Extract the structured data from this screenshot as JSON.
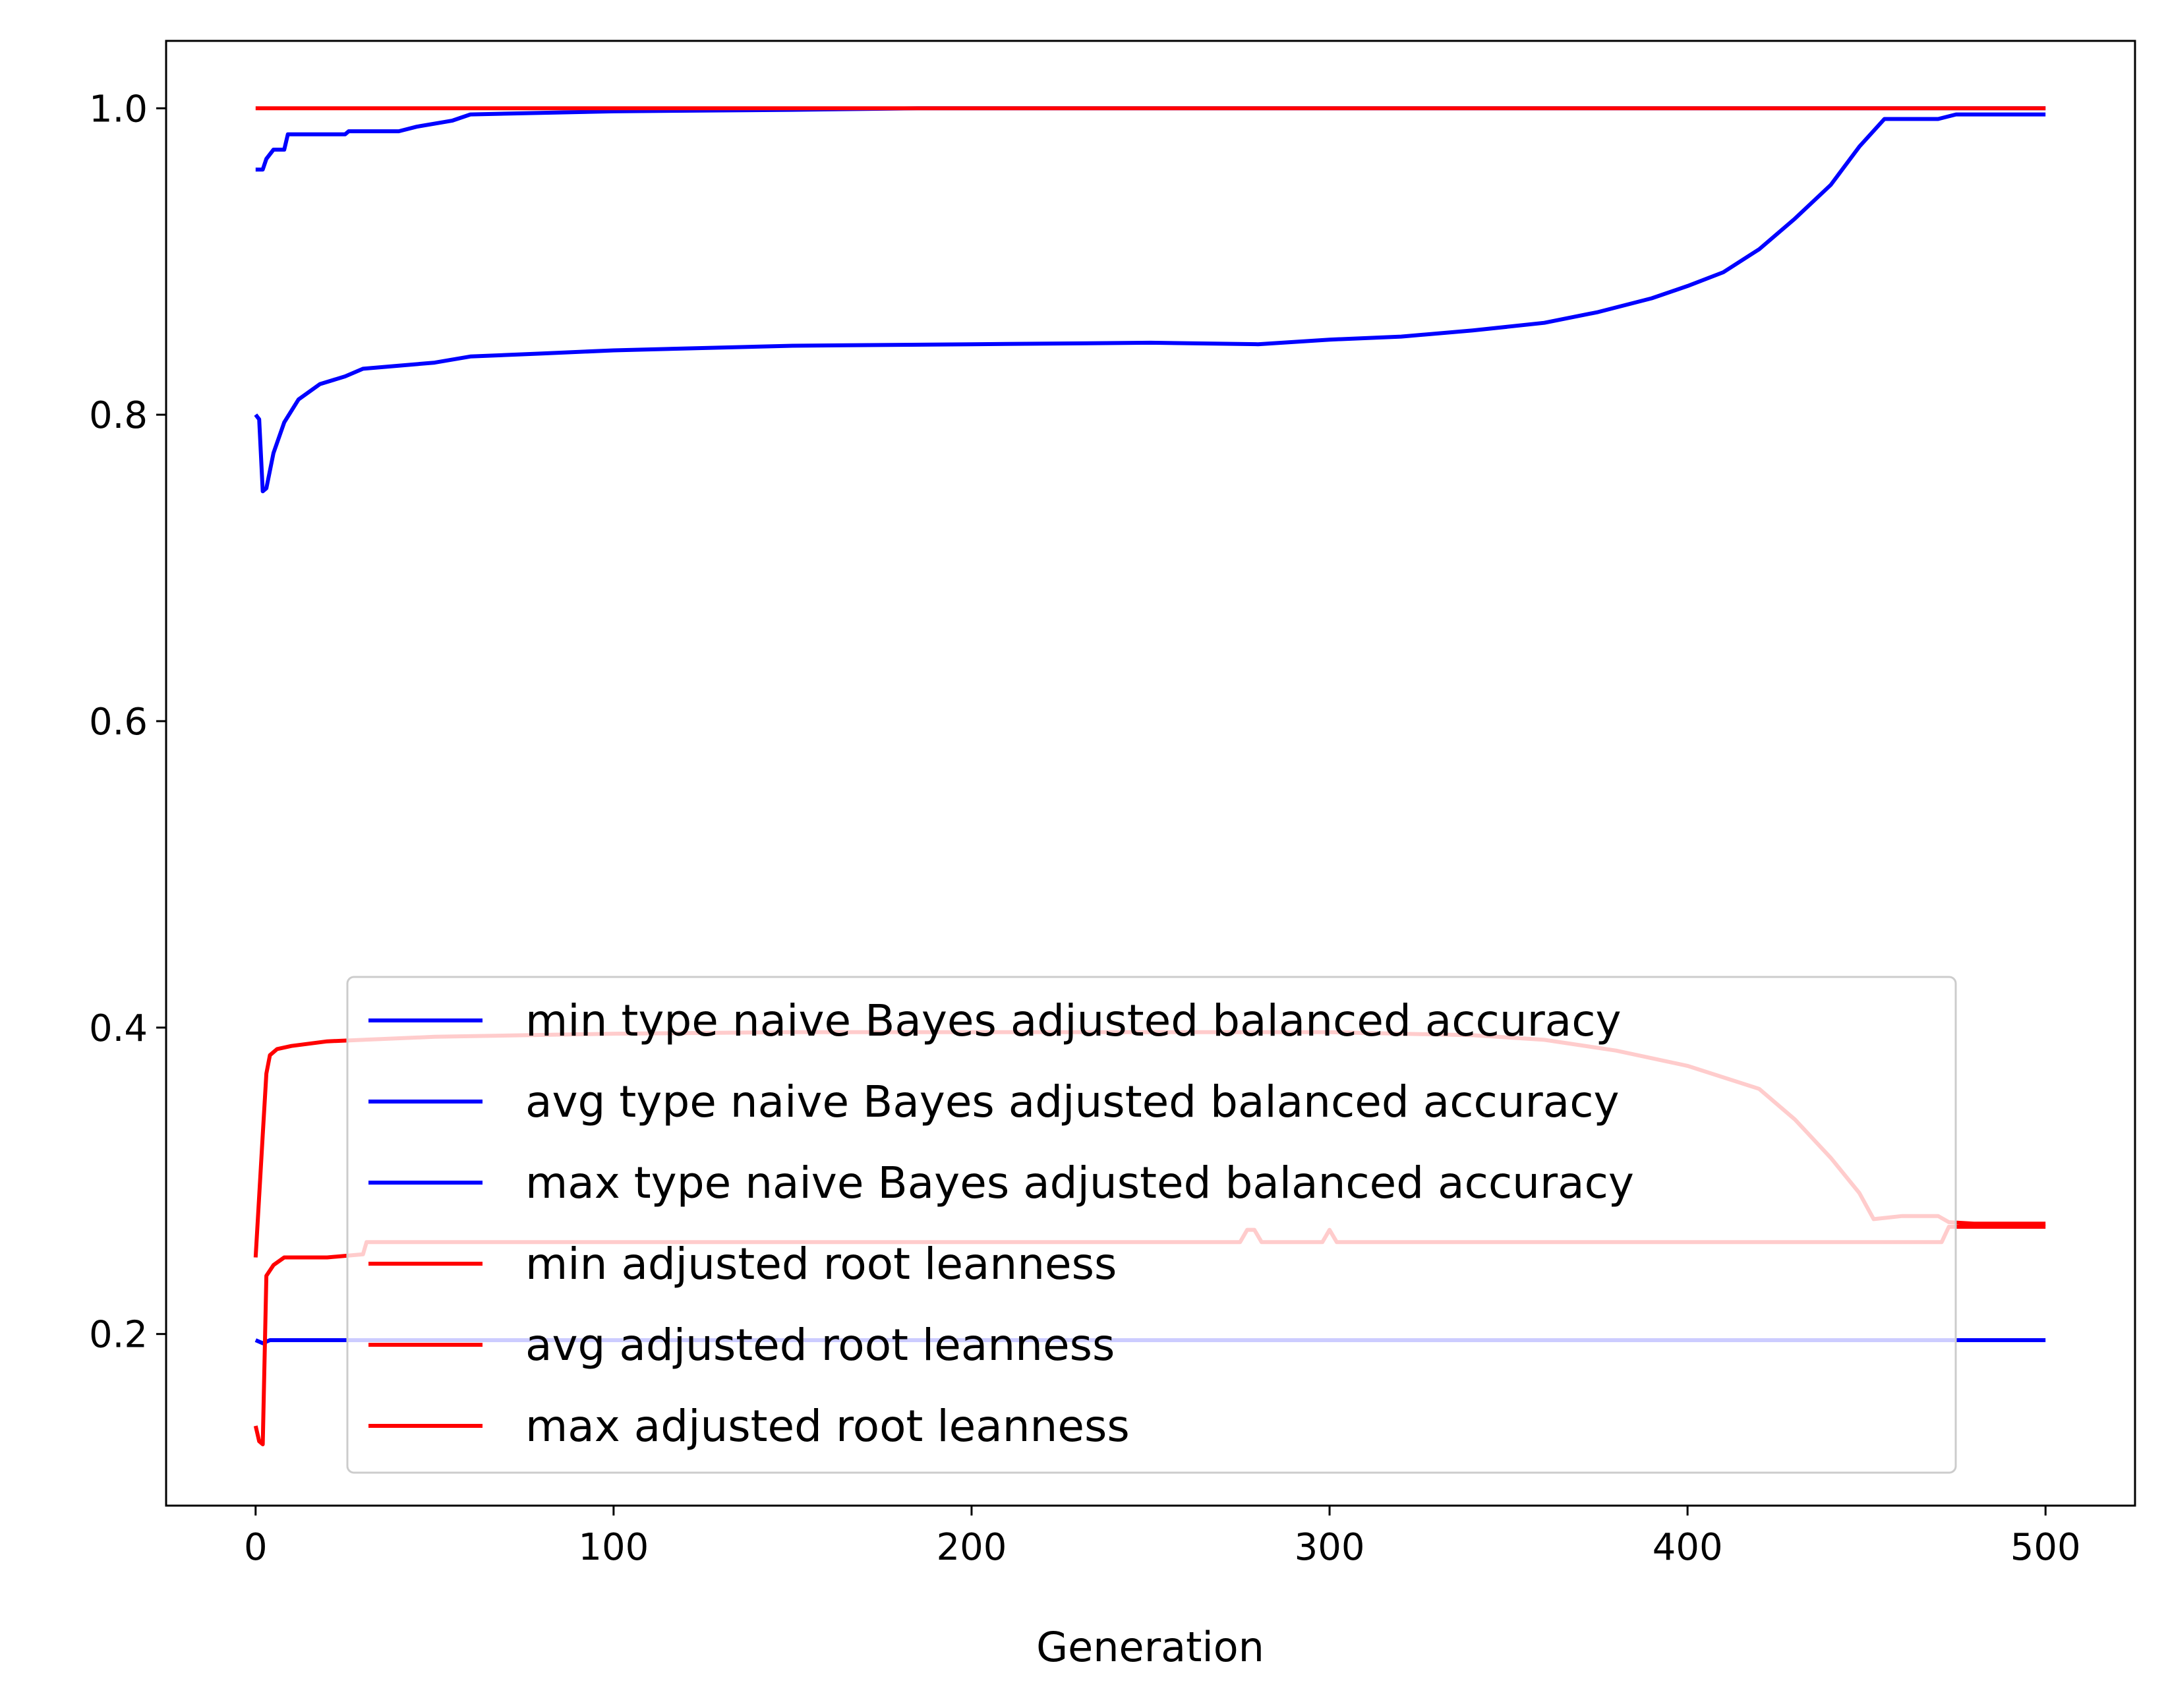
{
  "chart_data": {
    "type": "line",
    "title": "",
    "xlabel": "Generation",
    "ylabel": "",
    "xlim": [
      -25,
      525
    ],
    "ylim": [
      0.088,
      1.044
    ],
    "xticks": [
      0,
      100,
      200,
      300,
      400,
      500
    ],
    "yticks": [
      0.2,
      0.4,
      0.6,
      0.8,
      1.0
    ],
    "xtick_labels": [
      "0",
      "100",
      "200",
      "300",
      "400",
      "500"
    ],
    "ytick_labels": [
      "0.2",
      "0.4",
      "0.6",
      "0.8",
      "1.0"
    ],
    "grid": false,
    "legend_position": "lower-center",
    "series": [
      {
        "name": "min type naive Bayes adjusted balanced accuracy",
        "color": "#0000ff",
        "points": [
          [
            0,
            0.196
          ],
          [
            2,
            0.194
          ],
          [
            4,
            0.196
          ],
          [
            500,
            0.196
          ]
        ]
      },
      {
        "name": "avg type naive Bayes adjusted balanced accuracy",
        "color": "#0000ff",
        "points": [
          [
            0,
            0.8
          ],
          [
            1,
            0.797
          ],
          [
            2,
            0.75
          ],
          [
            3,
            0.752
          ],
          [
            5,
            0.775
          ],
          [
            8,
            0.795
          ],
          [
            12,
            0.81
          ],
          [
            18,
            0.82
          ],
          [
            25,
            0.825
          ],
          [
            30,
            0.83
          ],
          [
            40,
            0.832
          ],
          [
            50,
            0.834
          ],
          [
            60,
            0.838
          ],
          [
            80,
            0.84
          ],
          [
            100,
            0.842
          ],
          [
            150,
            0.845
          ],
          [
            200,
            0.846
          ],
          [
            250,
            0.847
          ],
          [
            280,
            0.846
          ],
          [
            300,
            0.849
          ],
          [
            320,
            0.851
          ],
          [
            340,
            0.855
          ],
          [
            360,
            0.86
          ],
          [
            375,
            0.867
          ],
          [
            390,
            0.876
          ],
          [
            400,
            0.884
          ],
          [
            410,
            0.893
          ],
          [
            420,
            0.908
          ],
          [
            430,
            0.928
          ],
          [
            440,
            0.95
          ],
          [
            448,
            0.975
          ],
          [
            455,
            0.993
          ],
          [
            470,
            0.993
          ],
          [
            475,
            0.996
          ],
          [
            500,
            0.996
          ]
        ]
      },
      {
        "name": "max type naive Bayes adjusted balanced accuracy",
        "color": "#0000ff",
        "points": [
          [
            0,
            0.96
          ],
          [
            2,
            0.96
          ],
          [
            3,
            0.967
          ],
          [
            5,
            0.973
          ],
          [
            8,
            0.973
          ],
          [
            9,
            0.983
          ],
          [
            25,
            0.983
          ],
          [
            26,
            0.985
          ],
          [
            40,
            0.985
          ],
          [
            45,
            0.988
          ],
          [
            55,
            0.992
          ],
          [
            60,
            0.996
          ],
          [
            100,
            0.998
          ],
          [
            150,
            0.999
          ],
          [
            185,
            1.0
          ],
          [
            500,
            1.0
          ]
        ]
      },
      {
        "name": "min adjusted root leanness",
        "color": "#ff0000",
        "points": [
          [
            0,
            0.14
          ],
          [
            1,
            0.13
          ],
          [
            2,
            0.128
          ],
          [
            3,
            0.238
          ],
          [
            5,
            0.245
          ],
          [
            8,
            0.25
          ],
          [
            20,
            0.25
          ],
          [
            30,
            0.252
          ],
          [
            31,
            0.26
          ],
          [
            100,
            0.26
          ],
          [
            200,
            0.26
          ],
          [
            275,
            0.26
          ],
          [
            277,
            0.268
          ],
          [
            279,
            0.268
          ],
          [
            281,
            0.26
          ],
          [
            298,
            0.26
          ],
          [
            300,
            0.268
          ],
          [
            302,
            0.26
          ],
          [
            400,
            0.26
          ],
          [
            471,
            0.26
          ],
          [
            473,
            0.27
          ],
          [
            500,
            0.27
          ]
        ]
      },
      {
        "name": "avg adjusted root leanness",
        "color": "#ff0000",
        "points": [
          [
            0,
            0.25
          ],
          [
            1,
            0.29
          ],
          [
            2,
            0.33
          ],
          [
            3,
            0.37
          ],
          [
            4,
            0.382
          ],
          [
            6,
            0.386
          ],
          [
            10,
            0.388
          ],
          [
            20,
            0.391
          ],
          [
            30,
            0.392
          ],
          [
            50,
            0.394
          ],
          [
            100,
            0.396
          ],
          [
            150,
            0.397
          ],
          [
            200,
            0.397
          ],
          [
            250,
            0.397
          ],
          [
            300,
            0.397
          ],
          [
            340,
            0.395
          ],
          [
            360,
            0.392
          ],
          [
            380,
            0.385
          ],
          [
            400,
            0.375
          ],
          [
            420,
            0.36
          ],
          [
            430,
            0.34
          ],
          [
            440,
            0.315
          ],
          [
            448,
            0.292
          ],
          [
            452,
            0.275
          ],
          [
            460,
            0.277
          ],
          [
            470,
            0.277
          ],
          [
            473,
            0.273
          ],
          [
            480,
            0.272
          ],
          [
            500,
            0.272
          ]
        ]
      },
      {
        "name": "max adjusted root leanness",
        "color": "#ff0000",
        "points": [
          [
            0,
            1.0
          ],
          [
            500,
            1.0
          ]
        ]
      }
    ]
  }
}
